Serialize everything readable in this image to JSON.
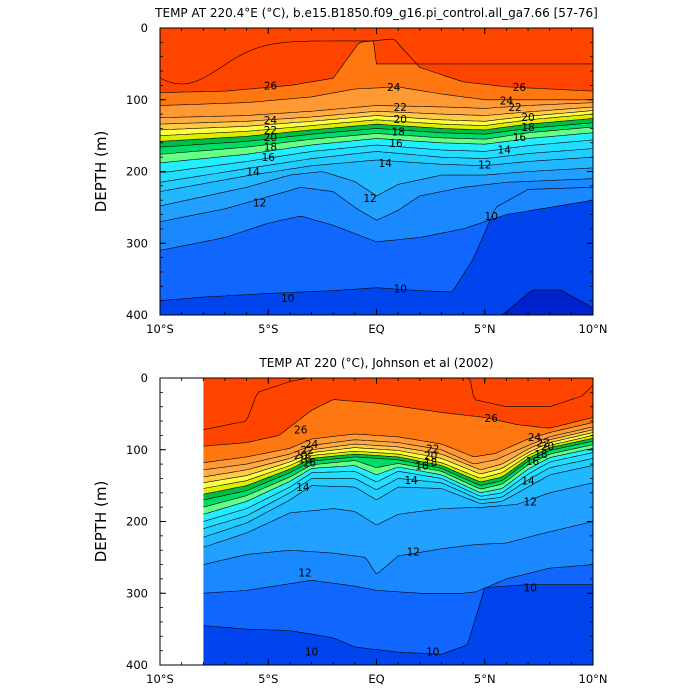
{
  "chart_data": [
    {
      "type": "heatmap",
      "subtype": "filled-contour",
      "title": "TEMP AT 220.4°E (°C), b.e15.B1850.f09_g16.pi_control.all_ga7.66 [57-76]",
      "ylabel": "DEPTH (m)",
      "xlim": [
        -10,
        10
      ],
      "ylim": [
        400,
        0
      ],
      "xticks": [
        {
          "value": -10,
          "label": "10°S"
        },
        {
          "value": -5,
          "label": "5°S"
        },
        {
          "value": 0,
          "label": "EQ"
        },
        {
          "value": 5,
          "label": "5°N"
        },
        {
          "value": 10,
          "label": "10°N"
        }
      ],
      "yticks": [
        {
          "value": 0,
          "label": "0"
        },
        {
          "value": 100,
          "label": "100"
        },
        {
          "value": 200,
          "label": "200"
        },
        {
          "value": 300,
          "label": "300"
        },
        {
          "value": 400,
          "label": "400"
        }
      ],
      "contour_levels": [
        9,
        10,
        11,
        12,
        13,
        14,
        15,
        16,
        17,
        18,
        19,
        20,
        21,
        22,
        23,
        24,
        25,
        26,
        27
      ],
      "level_colors": [
        "#0022cc",
        "#0044ee",
        "#1166ff",
        "#1a88ff",
        "#22a0ff",
        "#22b8ff",
        "#22ccff",
        "#22ddff",
        "#22eeff",
        "#66ff88",
        "#00dd66",
        "#00bb44",
        "#ddee00",
        "#ffff44",
        "#ffcc44",
        "#ffaa44",
        "#ff9933",
        "#ff7711",
        "#ff4400"
      ],
      "contour_labels": [
        {
          "text": "26",
          "x": -4.9,
          "y": 80
        },
        {
          "text": "24",
          "x": -4.9,
          "y": 128
        },
        {
          "text": "22",
          "x": -4.9,
          "y": 142
        },
        {
          "text": "20",
          "x": -4.9,
          "y": 152
        },
        {
          "text": "18",
          "x": -4.9,
          "y": 165
        },
        {
          "text": "16",
          "x": -5.0,
          "y": 180
        },
        {
          "text": "14",
          "x": -5.7,
          "y": 200
        },
        {
          "text": "12",
          "x": -5.4,
          "y": 243
        },
        {
          "text": "12",
          "x": -0.3,
          "y": 237
        },
        {
          "text": "24",
          "x": 0.8,
          "y": 82
        },
        {
          "text": "22",
          "x": 1.1,
          "y": 110
        },
        {
          "text": "20",
          "x": 1.1,
          "y": 127
        },
        {
          "text": "18",
          "x": 1.0,
          "y": 144
        },
        {
          "text": "16",
          "x": 0.9,
          "y": 160
        },
        {
          "text": "14",
          "x": 0.4,
          "y": 188
        },
        {
          "text": "12",
          "x": 5.0,
          "y": 190
        },
        {
          "text": "14",
          "x": 5.9,
          "y": 169
        },
        {
          "text": "16",
          "x": 6.6,
          "y": 152
        },
        {
          "text": "18",
          "x": 7.0,
          "y": 138
        },
        {
          "text": "20",
          "x": 7.0,
          "y": 124
        },
        {
          "text": "22",
          "x": 6.4,
          "y": 110
        },
        {
          "text": "24",
          "x": 6.0,
          "y": 101
        },
        {
          "text": "26",
          "x": 6.6,
          "y": 82
        },
        {
          "text": "10",
          "x": 5.3,
          "y": 262
        },
        {
          "text": "10",
          "x": -4.1,
          "y": 376
        },
        {
          "text": "10",
          "x": 1.1,
          "y": 363
        }
      ]
    },
    {
      "type": "heatmap",
      "subtype": "filled-contour",
      "title": "TEMP AT 220 (°C), Johnson et al (2002)",
      "ylabel": "DEPTH (m)",
      "xlim": [
        -10,
        10
      ],
      "ylim": [
        400,
        0
      ],
      "data_xmin": -8,
      "xticks": [
        {
          "value": -10,
          "label": "10°S"
        },
        {
          "value": -5,
          "label": "5°S"
        },
        {
          "value": 0,
          "label": "EQ"
        },
        {
          "value": 5,
          "label": "5°N"
        },
        {
          "value": 10,
          "label": "10°N"
        }
      ],
      "yticks": [
        {
          "value": 0,
          "label": "0"
        },
        {
          "value": 100,
          "label": "100"
        },
        {
          "value": 200,
          "label": "200"
        },
        {
          "value": 300,
          "label": "300"
        },
        {
          "value": 400,
          "label": "400"
        }
      ],
      "contour_labels": [
        {
          "text": "26",
          "x": -3.5,
          "y": 72
        },
        {
          "text": "24",
          "x": -3.0,
          "y": 92
        },
        {
          "text": "22",
          "x": -3.2,
          "y": 100
        },
        {
          "text": "20",
          "x": -3.5,
          "y": 107
        },
        {
          "text": "18",
          "x": -3.3,
          "y": 112
        },
        {
          "text": "16",
          "x": -3.1,
          "y": 118
        },
        {
          "text": "14",
          "x": -3.4,
          "y": 152
        },
        {
          "text": "14",
          "x": 1.6,
          "y": 142
        },
        {
          "text": "16",
          "x": 2.1,
          "y": 122
        },
        {
          "text": "18",
          "x": 2.5,
          "y": 117
        },
        {
          "text": "20",
          "x": 2.5,
          "y": 108
        },
        {
          "text": "22",
          "x": 2.6,
          "y": 98
        },
        {
          "text": "26",
          "x": 5.3,
          "y": 56
        },
        {
          "text": "24",
          "x": 7.3,
          "y": 82
        },
        {
          "text": "22",
          "x": 7.7,
          "y": 90
        },
        {
          "text": "20",
          "x": 7.9,
          "y": 95
        },
        {
          "text": "18",
          "x": 7.6,
          "y": 106
        },
        {
          "text": "16",
          "x": 7.2,
          "y": 116
        },
        {
          "text": "14",
          "x": 7.0,
          "y": 143
        },
        {
          "text": "12",
          "x": 7.1,
          "y": 172
        },
        {
          "text": "12",
          "x": 1.7,
          "y": 242
        },
        {
          "text": "12",
          "x": -3.3,
          "y": 271
        },
        {
          "text": "10",
          "x": 7.1,
          "y": 292
        },
        {
          "text": "10",
          "x": -3.0,
          "y": 381
        },
        {
          "text": "10",
          "x": 2.6,
          "y": 381
        }
      ]
    }
  ]
}
